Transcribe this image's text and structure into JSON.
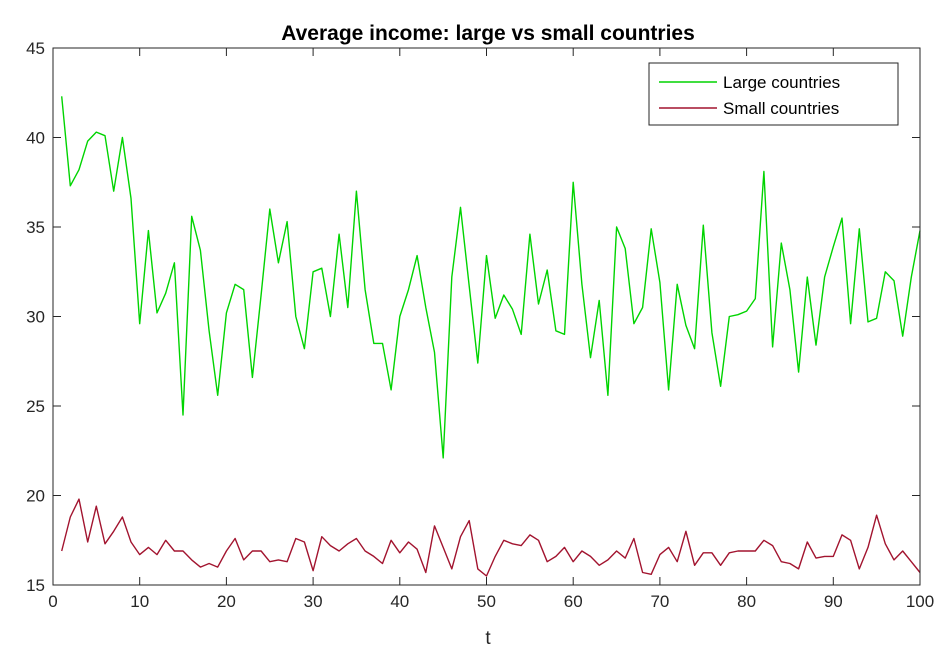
{
  "chart_data": {
    "type": "line",
    "title": "Average income: large vs small countries",
    "xlabel": "t",
    "ylabel": "",
    "xlim": [
      0,
      100
    ],
    "ylim": [
      15,
      45
    ],
    "xticks": [
      0,
      10,
      20,
      30,
      40,
      50,
      60,
      70,
      80,
      90,
      100
    ],
    "yticks": [
      15,
      20,
      25,
      30,
      35,
      40,
      45
    ],
    "grid": false,
    "legend_position": "top-right",
    "x": [
      1,
      2,
      3,
      4,
      5,
      6,
      7,
      8,
      9,
      10,
      11,
      12,
      13,
      14,
      15,
      16,
      17,
      18,
      19,
      20,
      21,
      22,
      23,
      24,
      25,
      26,
      27,
      28,
      29,
      30,
      31,
      32,
      33,
      34,
      35,
      36,
      37,
      38,
      39,
      40,
      41,
      42,
      43,
      44,
      45,
      46,
      47,
      48,
      49,
      50,
      51,
      52,
      53,
      54,
      55,
      56,
      57,
      58,
      59,
      60,
      61,
      62,
      63,
      64,
      65,
      66,
      67,
      68,
      69,
      70,
      71,
      72,
      73,
      74,
      75,
      76,
      77,
      78,
      79,
      80,
      81,
      82,
      83,
      84,
      85,
      86,
      87,
      88,
      89,
      90,
      91,
      92,
      93,
      94,
      95,
      96,
      97,
      98,
      99,
      100
    ],
    "series": [
      {
        "name": "Large countries",
        "color": "#00d400",
        "values": [
          42.3,
          37.3,
          38.2,
          39.8,
          40.3,
          40.1,
          37.0,
          40.0,
          36.6,
          29.6,
          34.8,
          30.2,
          31.3,
          33.0,
          24.5,
          35.6,
          33.7,
          29.2,
          25.6,
          30.2,
          31.8,
          31.5,
          26.6,
          31.2,
          36.0,
          33.0,
          35.3,
          30.0,
          28.2,
          32.5,
          32.7,
          30.0,
          34.6,
          30.5,
          37.0,
          31.5,
          28.5,
          28.5,
          25.9,
          30.0,
          31.5,
          33.4,
          30.5,
          28.0,
          22.1,
          32.2,
          36.1,
          31.7,
          27.4,
          33.4,
          29.9,
          31.2,
          30.4,
          29.0,
          34.6,
          30.7,
          32.6,
          29.2,
          29.0,
          37.5,
          31.8,
          27.7,
          30.9,
          25.6,
          35.0,
          33.8,
          29.6,
          30.5,
          34.9,
          31.9,
          25.9,
          31.8,
          29.5,
          28.2,
          35.1,
          29.1,
          26.1,
          30.0,
          30.1,
          30.3,
          31.0,
          38.1,
          28.3,
          34.1,
          31.5,
          26.9,
          32.2,
          28.4,
          32.2,
          33.9,
          35.5,
          29.6,
          34.9,
          29.7,
          29.9,
          32.5,
          32.0,
          28.9,
          32.2,
          34.8
        ]
      },
      {
        "name": "Small countries",
        "color": "#a2142f",
        "values": [
          16.9,
          18.8,
          19.8,
          17.4,
          19.4,
          17.3,
          18.0,
          18.8,
          17.4,
          16.7,
          17.1,
          16.7,
          17.5,
          16.9,
          16.9,
          16.4,
          16.0,
          16.2,
          16.0,
          16.9,
          17.6,
          16.4,
          16.9,
          16.9,
          16.3,
          16.4,
          16.3,
          17.6,
          17.4,
          15.8,
          17.7,
          17.2,
          16.9,
          17.3,
          17.6,
          16.9,
          16.6,
          16.2,
          17.5,
          16.8,
          17.4,
          17.0,
          15.7,
          18.3,
          17.1,
          15.9,
          17.7,
          18.6,
          15.9,
          15.5,
          16.6,
          17.5,
          17.3,
          17.2,
          17.8,
          17.5,
          16.3,
          16.6,
          17.1,
          16.3,
          16.9,
          16.6,
          16.1,
          16.4,
          16.9,
          16.5,
          17.6,
          15.7,
          15.6,
          16.7,
          17.1,
          16.3,
          18.0,
          16.1,
          16.8,
          16.8,
          16.1,
          16.8,
          16.9,
          16.9,
          16.9,
          17.5,
          17.2,
          16.3,
          16.2,
          15.9,
          17.4,
          16.5,
          16.6,
          16.6,
          17.8,
          17.5,
          15.9,
          17.1,
          18.9,
          17.3,
          16.4,
          16.9,
          16.3,
          15.7
        ]
      }
    ]
  }
}
